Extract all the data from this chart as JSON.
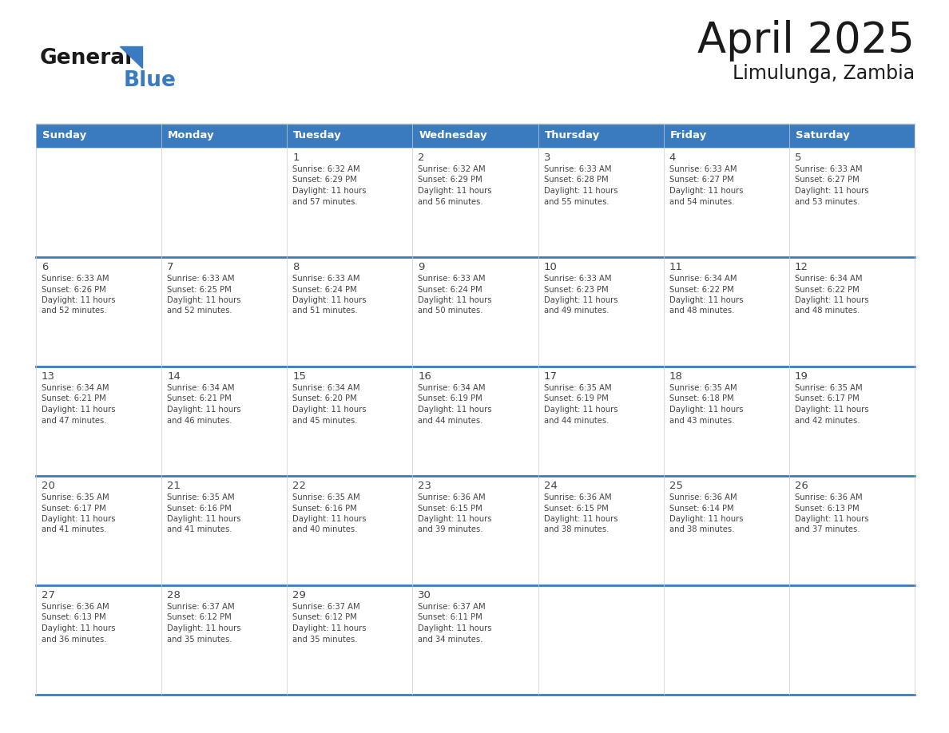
{
  "title": "April 2025",
  "subtitle": "Limulunga, Zambia",
  "header_bg_color": "#3A7BBF",
  "header_text_color": "#FFFFFF",
  "border_color": "#3A7BBF",
  "separator_color": "#BBBBBB",
  "day_names": [
    "Sunday",
    "Monday",
    "Tuesday",
    "Wednesday",
    "Thursday",
    "Friday",
    "Saturday"
  ],
  "title_color": "#1A1A1A",
  "subtitle_color": "#1A1A1A",
  "text_color": "#444444",
  "logo_black": "#1A1A1A",
  "logo_blue": "#3A7BBF",
  "days": [
    {
      "day": 1,
      "col": 2,
      "row": 0,
      "sunrise": "6:32 AM",
      "sunset": "6:29 PM",
      "daylight": "11 hours and 57 minutes."
    },
    {
      "day": 2,
      "col": 3,
      "row": 0,
      "sunrise": "6:32 AM",
      "sunset": "6:29 PM",
      "daylight": "11 hours and 56 minutes."
    },
    {
      "day": 3,
      "col": 4,
      "row": 0,
      "sunrise": "6:33 AM",
      "sunset": "6:28 PM",
      "daylight": "11 hours and 55 minutes."
    },
    {
      "day": 4,
      "col": 5,
      "row": 0,
      "sunrise": "6:33 AM",
      "sunset": "6:27 PM",
      "daylight": "11 hours and 54 minutes."
    },
    {
      "day": 5,
      "col": 6,
      "row": 0,
      "sunrise": "6:33 AM",
      "sunset": "6:27 PM",
      "daylight": "11 hours and 53 minutes."
    },
    {
      "day": 6,
      "col": 0,
      "row": 1,
      "sunrise": "6:33 AM",
      "sunset": "6:26 PM",
      "daylight": "11 hours and 52 minutes."
    },
    {
      "day": 7,
      "col": 1,
      "row": 1,
      "sunrise": "6:33 AM",
      "sunset": "6:25 PM",
      "daylight": "11 hours and 52 minutes."
    },
    {
      "day": 8,
      "col": 2,
      "row": 1,
      "sunrise": "6:33 AM",
      "sunset": "6:24 PM",
      "daylight": "11 hours and 51 minutes."
    },
    {
      "day": 9,
      "col": 3,
      "row": 1,
      "sunrise": "6:33 AM",
      "sunset": "6:24 PM",
      "daylight": "11 hours and 50 minutes."
    },
    {
      "day": 10,
      "col": 4,
      "row": 1,
      "sunrise": "6:33 AM",
      "sunset": "6:23 PM",
      "daylight": "11 hours and 49 minutes."
    },
    {
      "day": 11,
      "col": 5,
      "row": 1,
      "sunrise": "6:34 AM",
      "sunset": "6:22 PM",
      "daylight": "11 hours and 48 minutes."
    },
    {
      "day": 12,
      "col": 6,
      "row": 1,
      "sunrise": "6:34 AM",
      "sunset": "6:22 PM",
      "daylight": "11 hours and 48 minutes."
    },
    {
      "day": 13,
      "col": 0,
      "row": 2,
      "sunrise": "6:34 AM",
      "sunset": "6:21 PM",
      "daylight": "11 hours and 47 minutes."
    },
    {
      "day": 14,
      "col": 1,
      "row": 2,
      "sunrise": "6:34 AM",
      "sunset": "6:21 PM",
      "daylight": "11 hours and 46 minutes."
    },
    {
      "day": 15,
      "col": 2,
      "row": 2,
      "sunrise": "6:34 AM",
      "sunset": "6:20 PM",
      "daylight": "11 hours and 45 minutes."
    },
    {
      "day": 16,
      "col": 3,
      "row": 2,
      "sunrise": "6:34 AM",
      "sunset": "6:19 PM",
      "daylight": "11 hours and 44 minutes."
    },
    {
      "day": 17,
      "col": 4,
      "row": 2,
      "sunrise": "6:35 AM",
      "sunset": "6:19 PM",
      "daylight": "11 hours and 44 minutes."
    },
    {
      "day": 18,
      "col": 5,
      "row": 2,
      "sunrise": "6:35 AM",
      "sunset": "6:18 PM",
      "daylight": "11 hours and 43 minutes."
    },
    {
      "day": 19,
      "col": 6,
      "row": 2,
      "sunrise": "6:35 AM",
      "sunset": "6:17 PM",
      "daylight": "11 hours and 42 minutes."
    },
    {
      "day": 20,
      "col": 0,
      "row": 3,
      "sunrise": "6:35 AM",
      "sunset": "6:17 PM",
      "daylight": "11 hours and 41 minutes."
    },
    {
      "day": 21,
      "col": 1,
      "row": 3,
      "sunrise": "6:35 AM",
      "sunset": "6:16 PM",
      "daylight": "11 hours and 41 minutes."
    },
    {
      "day": 22,
      "col": 2,
      "row": 3,
      "sunrise": "6:35 AM",
      "sunset": "6:16 PM",
      "daylight": "11 hours and 40 minutes."
    },
    {
      "day": 23,
      "col": 3,
      "row": 3,
      "sunrise": "6:36 AM",
      "sunset": "6:15 PM",
      "daylight": "11 hours and 39 minutes."
    },
    {
      "day": 24,
      "col": 4,
      "row": 3,
      "sunrise": "6:36 AM",
      "sunset": "6:15 PM",
      "daylight": "11 hours and 38 minutes."
    },
    {
      "day": 25,
      "col": 5,
      "row": 3,
      "sunrise": "6:36 AM",
      "sunset": "6:14 PM",
      "daylight": "11 hours and 38 minutes."
    },
    {
      "day": 26,
      "col": 6,
      "row": 3,
      "sunrise": "6:36 AM",
      "sunset": "6:13 PM",
      "daylight": "11 hours and 37 minutes."
    },
    {
      "day": 27,
      "col": 0,
      "row": 4,
      "sunrise": "6:36 AM",
      "sunset": "6:13 PM",
      "daylight": "11 hours and 36 minutes."
    },
    {
      "day": 28,
      "col": 1,
      "row": 4,
      "sunrise": "6:37 AM",
      "sunset": "6:12 PM",
      "daylight": "11 hours and 35 minutes."
    },
    {
      "day": 29,
      "col": 2,
      "row": 4,
      "sunrise": "6:37 AM",
      "sunset": "6:12 PM",
      "daylight": "11 hours and 35 minutes."
    },
    {
      "day": 30,
      "col": 3,
      "row": 4,
      "sunrise": "6:37 AM",
      "sunset": "6:11 PM",
      "daylight": "11 hours and 34 minutes."
    }
  ]
}
